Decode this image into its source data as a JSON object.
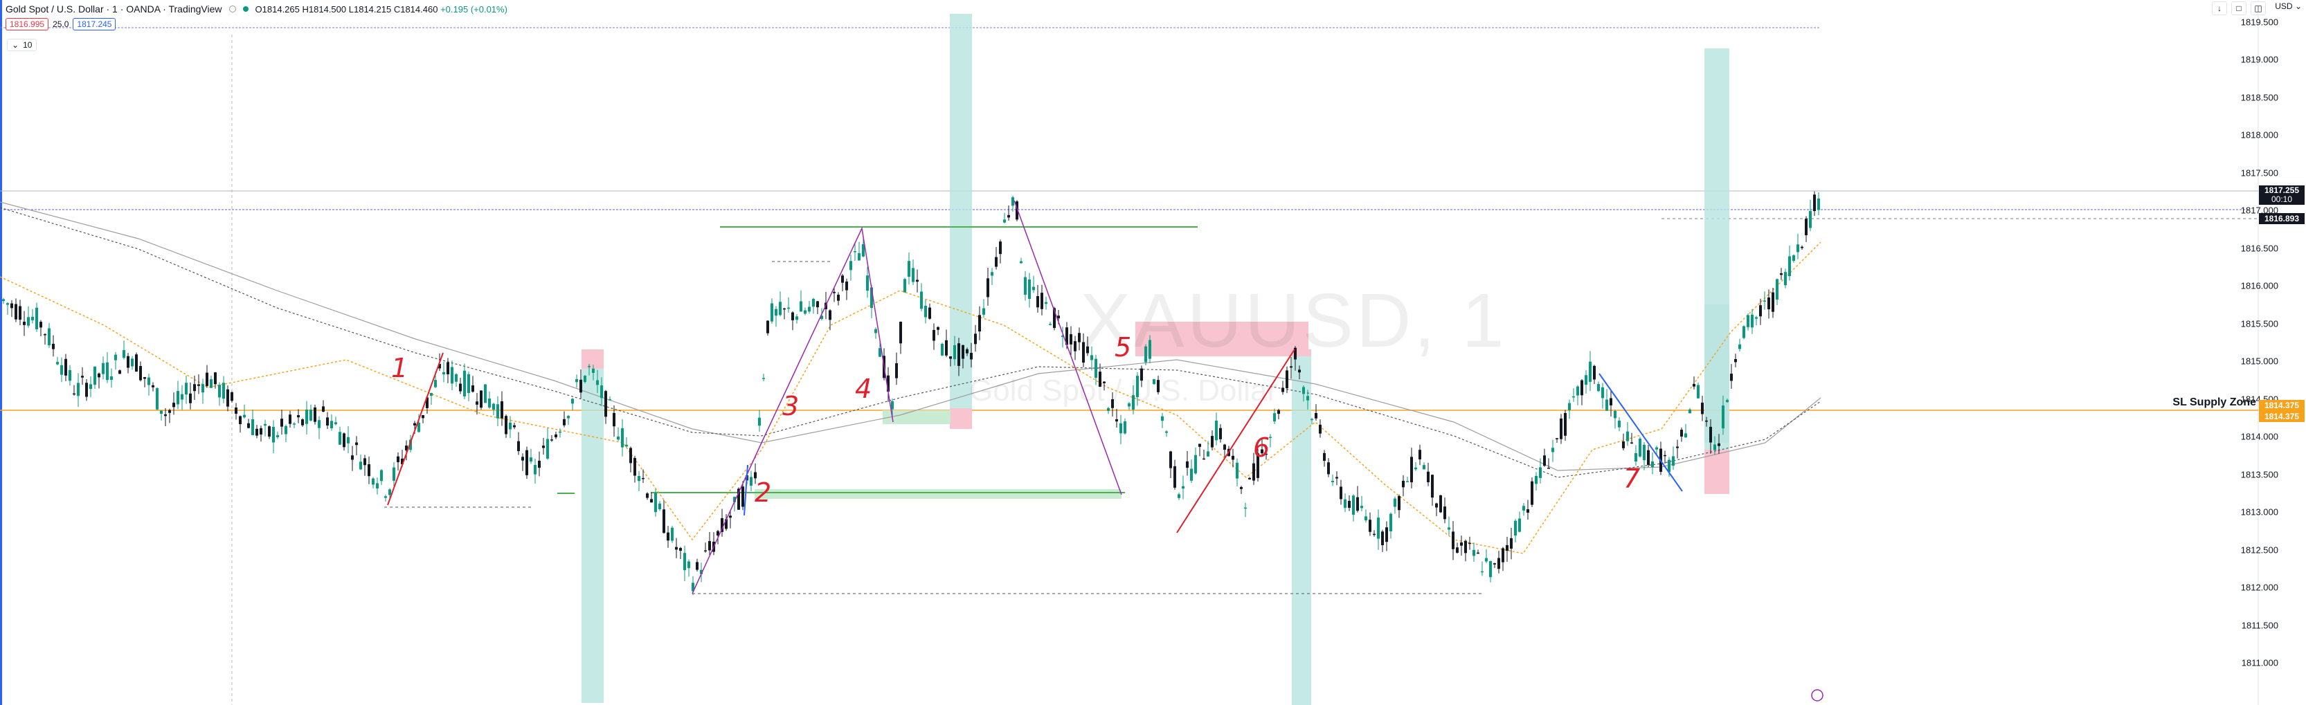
{
  "header": {
    "title": "Gold Spot / U.S. Dollar · 1 · OANDA · TradingView",
    "ohlc_open": "O1814.265",
    "ohlc_high": "H1814.500",
    "ohlc_low": "L1814.215",
    "ohlc_close": "C1814.460",
    "change": "+0.195 (+0.01%)",
    "sell_price": "1816.995",
    "spread": "25.0",
    "buy_price": "1817.245",
    "indicator_count": "10",
    "currency": "USD"
  },
  "watermark": {
    "symbol": "XAUUSD, 1",
    "name": "Gold Spot / U.S. Dollar"
  },
  "price_axis": {
    "ticks": [
      "1819.500",
      "1819.000",
      "1818.500",
      "1818.000",
      "1817.500",
      "1817.000",
      "1816.500",
      "1816.000",
      "1815.500",
      "1815.000",
      "1814.500",
      "1814.000",
      "1813.500",
      "1813.000",
      "1812.500",
      "1812.000",
      "1811.500",
      "1811.000"
    ],
    "tick_values": [
      1819.5,
      1819.0,
      1818.5,
      1818.0,
      1817.5,
      1817.0,
      1816.5,
      1816.0,
      1815.5,
      1815.0,
      1814.5,
      1814.0,
      1813.5,
      1813.0,
      1812.5,
      1812.0,
      1811.5,
      1811.0
    ],
    "current_price": "1817.255",
    "countdown": "00:10",
    "line_price": "1816.893",
    "zone_top": "1814.375",
    "zone_bottom": "1814.375"
  },
  "annotations": {
    "sl_label": "SL Supply Zone",
    "wave_numbers": [
      "1",
      "2",
      "3",
      "4",
      "5",
      "6",
      "7"
    ]
  },
  "colors": {
    "bull": "#089981",
    "bear": "#131722",
    "supply": "#f7c4cf",
    "demand": "#c8ebd2",
    "teal_bar": "#b6e3de",
    "orange": "#f7a21b",
    "drawing_red": "#e0202a",
    "drawing_purple": "#9c27b0",
    "drawing_blue": "#2962ff"
  },
  "icons": [
    "down-arrow-icon",
    "maximize-icon",
    "screenshot-icon",
    "alert-clock-icon",
    "eye-icon"
  ]
}
